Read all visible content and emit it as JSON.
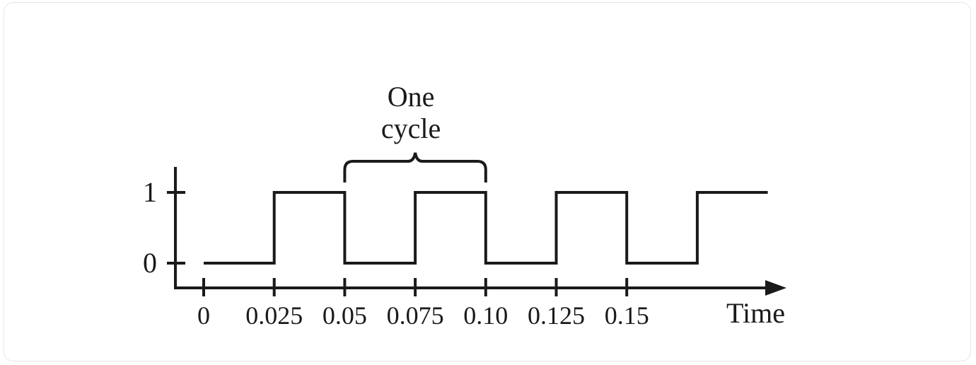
{
  "chart_data": {
    "type": "line",
    "step": true,
    "xlabel": "Time",
    "x_ticks": [
      0,
      0.025,
      0.05,
      0.075,
      0.1,
      0.125,
      0.15
    ],
    "x_tick_labels": [
      "0",
      "0.025",
      "0.05",
      "0.075",
      "0.10",
      "0.125",
      "0.15"
    ],
    "y_ticks": [
      0,
      1
    ],
    "y_tick_labels": [
      "0",
      "1"
    ],
    "xlim": [
      0,
      0.2
    ],
    "ylim": [
      0,
      1
    ],
    "series": [
      {
        "x": [
          0,
          0.025,
          0.025,
          0.05,
          0.05,
          0.075,
          0.075,
          0.1,
          0.1,
          0.125,
          0.125,
          0.15,
          0.15,
          0.175,
          0.175,
          0.2
        ],
        "y": [
          0,
          0,
          1,
          1,
          0,
          0,
          1,
          1,
          0,
          0,
          1,
          1,
          0,
          0,
          1,
          1
        ]
      }
    ],
    "annotation": {
      "lines": [
        "One",
        "cycle"
      ],
      "from": 0.05,
      "to": 0.1
    }
  }
}
